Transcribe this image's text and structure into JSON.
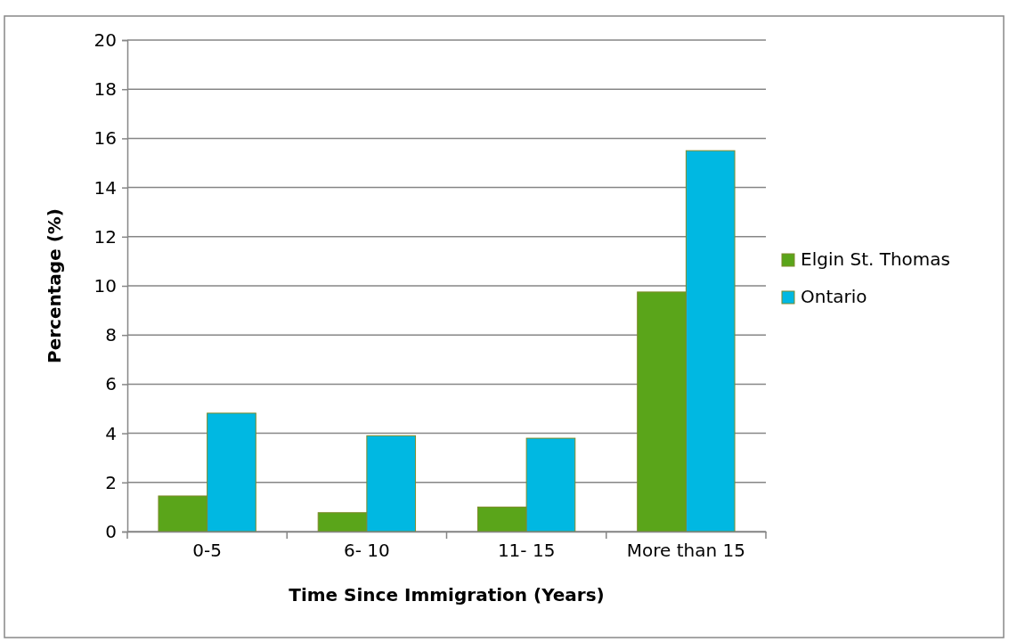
{
  "chart_data": {
    "type": "bar",
    "xlabel": "Time Since Immigration (Years)",
    "ylabel": "Percentage (%)",
    "categories": [
      "0-5",
      "6- 10",
      "11- 15",
      "More than 15"
    ],
    "series": [
      {
        "name": "Elgin St. Thomas",
        "color": "#5aa51a",
        "values": [
          1.45,
          0.77,
          1.0,
          9.75
        ]
      },
      {
        "name": "Ontario",
        "color": "#00b8e2",
        "values": [
          4.82,
          3.9,
          3.8,
          15.5
        ]
      }
    ],
    "ylim": [
      0,
      20
    ],
    "yticks": [
      0,
      2,
      4,
      6,
      8,
      10,
      12,
      14,
      16,
      18,
      20
    ],
    "grid": "y",
    "legend": "right"
  }
}
